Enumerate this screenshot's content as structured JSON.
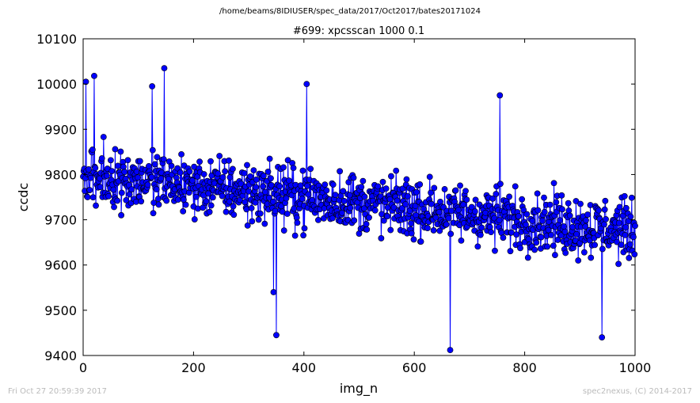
{
  "file_path": "/home/beams/8IDIUSER/spec_data/2017/Oct2017/bates20171024",
  "footer_left": "Fri Oct 27 20:59:39 2017",
  "footer_right": "spec2nexus, (C) 2014-2017",
  "chart_data": {
    "type": "line",
    "title": "#699: xpcsscan 1000 0.1",
    "xlabel": "img_n",
    "ylabel": "ccdc",
    "xlim": [
      0,
      1000
    ],
    "ylim": [
      9400,
      10100
    ],
    "xticks": [
      0,
      200,
      400,
      600,
      800,
      1000
    ],
    "yticks": [
      9400,
      9500,
      9600,
      9700,
      9800,
      9900,
      10000,
      10100
    ],
    "x_tick_labels": [
      "0",
      "200",
      "400",
      "600",
      "800",
      "1000"
    ],
    "y_tick_labels": [
      "9400",
      "9500",
      "9600",
      "9700",
      "9800",
      "9900",
      "10000",
      "10100"
    ],
    "grid": false,
    "line_color": "#0000ff",
    "marker": "circle",
    "marker_color": "#0000ff",
    "series_note_points": "values sampled at x = 0..1000 (1001 points), approximated from the plot",
    "x_start": 0,
    "x_step": 1,
    "count": 1001,
    "mean_trend": {
      "start": 9800,
      "end": 9675
    },
    "noise_amplitude": 75,
    "notable_points": [
      {
        "x": 5,
        "y": 10005
      },
      {
        "x": 20,
        "y": 10018
      },
      {
        "x": 125,
        "y": 9995
      },
      {
        "x": 147,
        "y": 10035
      },
      {
        "x": 345,
        "y": 9540
      },
      {
        "x": 350,
        "y": 9445
      },
      {
        "x": 405,
        "y": 10000
      },
      {
        "x": 665,
        "y": 9412
      },
      {
        "x": 755,
        "y": 9975
      },
      {
        "x": 940,
        "y": 9440
      }
    ]
  }
}
